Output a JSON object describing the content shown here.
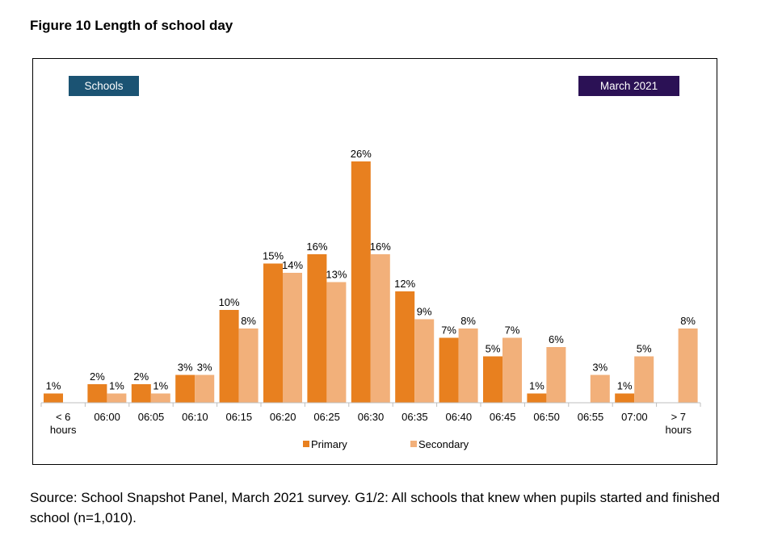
{
  "figure": {
    "title": "Figure 10 Length of school day"
  },
  "badges": {
    "schools": "Schools",
    "date": "March 2021",
    "schools_color": "#1b5373",
    "date_color": "#2b1155"
  },
  "chart_data": {
    "type": "bar",
    "title": "Figure 10 Length of school day",
    "xlabel": "",
    "ylabel": "",
    "ylim": [
      0,
      30
    ],
    "grid": false,
    "legend_position": "bottom",
    "categories": [
      "< 6 hours",
      "06:00",
      "06:05",
      "06:10",
      "06:15",
      "06:20",
      "06:25",
      "06:30",
      "06:35",
      "06:40",
      "06:45",
      "06:50",
      "06:55",
      "07:00",
      "> 7 hours"
    ],
    "series": [
      {
        "name": "Primary",
        "color": "#e8801f",
        "values": [
          1,
          2,
          2,
          3,
          10,
          15,
          16,
          26,
          12,
          7,
          5,
          1,
          0,
          1,
          0
        ],
        "labels": [
          "1%",
          "2%",
          "2%",
          "3%",
          "10%",
          "15%",
          "16%",
          "26%",
          "12%",
          "7%",
          "5%",
          "1%",
          "",
          "1%",
          ""
        ]
      },
      {
        "name": "Secondary",
        "color": "#f2b07a",
        "values": [
          0,
          1,
          1,
          3,
          8,
          14,
          13,
          16,
          9,
          8,
          7,
          6,
          3,
          5,
          8
        ],
        "labels": [
          "",
          "1%",
          "1%",
          "3%",
          "8%",
          "14%",
          "13%",
          "16%",
          "9%",
          "8%",
          "7%",
          "6%",
          "3%",
          "5%",
          "8%"
        ]
      }
    ]
  },
  "source": {
    "text": "Source: School Snapshot Panel, March 2021 survey. G1/2: All schools that knew when pupils started and finished school (n=1,010)."
  }
}
